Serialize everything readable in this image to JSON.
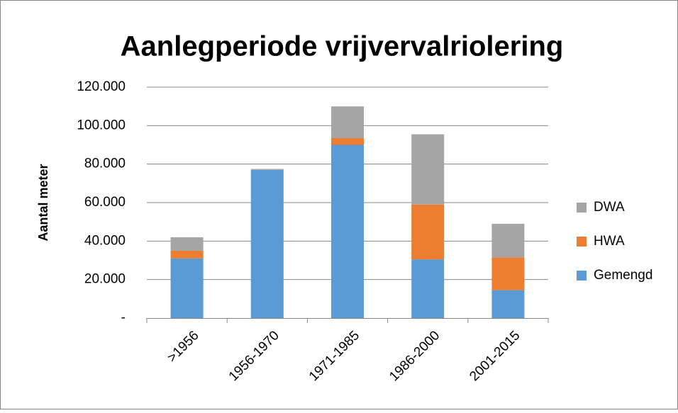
{
  "chart_data": {
    "type": "stacked_bar",
    "title": "Aanlegperiode vrijvervalriolering",
    "y_label": "Aantal meter",
    "categories": [
      ">1956",
      "1956-1970",
      "1971-1985",
      "1986-2000",
      "2001-2015"
    ],
    "series": [
      {
        "name": "Gemengd",
        "color": "#5b9bd5",
        "values": [
          31000,
          77000,
          90000,
          30500,
          14500
        ]
      },
      {
        "name": "HWA",
        "color": "#ed7d31",
        "values": [
          4000,
          0,
          3500,
          28500,
          17000
        ]
      },
      {
        "name": "DWA",
        "color": "#a5a5a5",
        "values": [
          7000,
          500,
          16500,
          36500,
          17500
        ]
      }
    ],
    "ylim": [
      0,
      120000
    ],
    "yticks": [
      {
        "value": 0,
        "label": "-"
      },
      {
        "value": 20000,
        "label": "20.000"
      },
      {
        "value": 40000,
        "label": "40.000"
      },
      {
        "value": 60000,
        "label": "60.000"
      },
      {
        "value": 80000,
        "label": "80.000"
      },
      {
        "value": 100000,
        "label": "100.000"
      },
      {
        "value": 120000,
        "label": "120.000"
      }
    ],
    "grid": true,
    "legend": "right"
  }
}
